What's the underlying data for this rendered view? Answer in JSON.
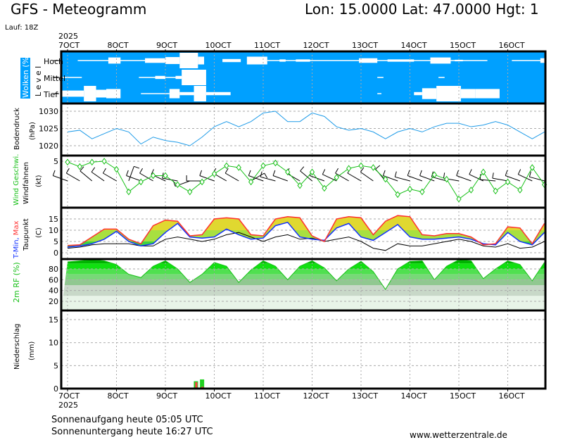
{
  "header": {
    "title": "GFS - Meteogramm",
    "location": "Lon: 15.0000  Lat: 47.0000  Hgt: 1",
    "run": "Lauf: 18Z",
    "year": "2025"
  },
  "footer": {
    "sunrise": "Sonnenaufgang heute 05:05 UTC",
    "sunset": "Sonnenuntergang heute 16:27 UTC",
    "website": "www.wetterzentrale.de"
  },
  "colors": {
    "cloud_bg": "#00a0ff",
    "pressure": "#1e9be8",
    "wind": "#19c019",
    "tmin": "#1030ff",
    "tmax": "#ff3030",
    "dew": "#000000",
    "precip_total": "#20d020",
    "precip_conv": "#ff4040"
  },
  "chart_data": {
    "type": "line",
    "title": "GFS - Meteogramm",
    "x_unit": "hours since 7 OCT 2025 00Z",
    "x_range": [
      -3,
      234
    ],
    "date_labels": [
      "7OCT",
      "8OCT",
      "9OCT",
      "10OCT",
      "11OCT",
      "12OCT",
      "13OCT",
      "14OCT",
      "15OCT",
      "16OCT"
    ],
    "hours": [
      0,
      6,
      12,
      18,
      24,
      30,
      36,
      42,
      48,
      54,
      60,
      66,
      72,
      78,
      84,
      90,
      96,
      102,
      108,
      114,
      120,
      126,
      132,
      138,
      144,
      150,
      156,
      162,
      168,
      174,
      180,
      186,
      192,
      198,
      204,
      210,
      216,
      222,
      228,
      234
    ],
    "panels": {
      "clouds": {
        "label": "Wolken (%)",
        "sublabel": "L e v e l",
        "levels": [
          {
            "name": "Hoch",
            "segments": [
              [
                5,
                38,
                5
              ],
              [
                20,
                26,
                40
              ],
              [
                38,
                48,
                30
              ],
              [
                48,
                55,
                45
              ],
              [
                55,
                64,
                100
              ],
              [
                64,
                67,
                50
              ],
              [
                76,
                85,
                20
              ],
              [
                88,
                98,
                50
              ],
              [
                98,
                206,
                5
              ],
              [
                104,
                107,
                15
              ],
              [
                112,
                119,
                15
              ],
              [
                143,
                152,
                30
              ],
              [
                157,
                170,
                15
              ],
              [
                178,
                188,
                40
              ],
              [
                190,
                194,
                10
              ],
              [
                218,
                234,
                5
              ],
              [
                232,
                234,
                30
              ]
            ]
          },
          {
            "name": "Mittel",
            "segments": [
              [
                -3,
                7,
                5
              ],
              [
                35,
                67,
                5
              ],
              [
                43,
                48,
                20
              ],
              [
                53,
                56,
                20
              ],
              [
                56,
                68,
                100
              ],
              [
                152,
                155,
                5
              ],
              [
                182,
                185,
                5
              ]
            ]
          },
          {
            "name": "Tief",
            "segments": [
              [
                -3,
                8,
                40
              ],
              [
                8,
                14,
                100
              ],
              [
                14,
                19,
                50
              ],
              [
                19,
                26,
                60
              ],
              [
                36,
                50,
                5
              ],
              [
                50,
                55,
                60
              ],
              [
                55,
                62,
                20
              ],
              [
                62,
                68,
                100
              ],
              [
                68,
                80,
                20
              ],
              [
                152,
                154,
                5
              ],
              [
                170,
                174,
                20
              ],
              [
                174,
                181,
                70
              ],
              [
                181,
                193,
                100
              ],
              [
                193,
                200,
                60
              ],
              [
                200,
                212,
                60
              ]
            ]
          }
        ]
      },
      "pressure": {
        "label": "Bodendruck",
        "unit": "(hPa)",
        "ticks": [
          1020,
          1025,
          1030
        ],
        "ylim": [
          1018,
          1032
        ],
        "values": [
          1024,
          1024.5,
          1022,
          1023.5,
          1025,
          1024,
          1020.5,
          1022.5,
          1021.5,
          1021,
          1020,
          1022.5,
          1025.5,
          1027,
          1025.5,
          1027,
          1029.5,
          1030,
          1027,
          1027,
          1029.5,
          1028.5,
          1025.5,
          1024.5,
          1025,
          1024,
          1022,
          1024,
          1025,
          1024,
          1025.5,
          1026.5,
          1026.5,
          1025.5,
          1026,
          1027,
          1026,
          1024,
          1022,
          1024
        ]
      },
      "wind": {
        "label": "Wind Geschwi.",
        "sublabel": "Windfahnen",
        "unit": "(kt)",
        "ticks": [
          5
        ],
        "ylim": [
          0,
          5.5
        ],
        "speed": [
          4.9,
          4.4,
          4.9,
          5.0,
          4.1,
          1.6,
          2.7,
          3.4,
          3.4,
          2.4,
          1.6,
          2.7,
          3.6,
          4.5,
          4.3,
          2.7,
          4.5,
          4.8,
          3.8,
          2.3,
          3.8,
          2.0,
          3.2,
          4.2,
          4.5,
          4.3,
          3.0,
          1.3,
          1.9,
          1.6,
          3.5,
          3.0,
          0.8,
          1.8,
          3.8,
          1.7,
          2.7,
          1.8,
          4.3,
          2.4
        ],
        "direction_deg": [
          290,
          300,
          310,
          305,
          300,
          20,
          290,
          300,
          295,
          280,
          250,
          270,
          290,
          300,
          300,
          60,
          290,
          285,
          290,
          300,
          310,
          290,
          295,
          300,
          300,
          305,
          320,
          290,
          285,
          290,
          290,
          285,
          280,
          290,
          295,
          275,
          280,
          290,
          295,
          285
        ]
      },
      "temperature": {
        "label_min": "T-Min,",
        "label_max": "Max",
        "sublabel": "Taupunkt",
        "unit": "(C)",
        "ticks": [
          0,
          5,
          10,
          15
        ],
        "ylim": [
          -1,
          19
        ],
        "tmax": [
          3.2,
          3.5,
          7,
          10.5,
          10.5,
          6,
          4,
          12,
          14.5,
          14,
          7.5,
          8,
          15,
          15.5,
          15,
          8,
          7.5,
          15,
          16,
          15.5,
          7.5,
          5,
          15,
          16,
          15.5,
          8,
          14,
          16.5,
          16,
          8,
          7.5,
          8.5,
          8.5,
          7,
          3.5,
          4,
          11.5,
          11,
          4,
          13
        ],
        "tmin": [
          2.5,
          3,
          4,
          6,
          9.5,
          5,
          3,
          4,
          9,
          13,
          7,
          6.5,
          7,
          10.5,
          8,
          6,
          6.5,
          12,
          13.5,
          7,
          6,
          5.5,
          11,
          13,
          7,
          5.5,
          9,
          12.5,
          7,
          6,
          6,
          6.5,
          7,
          6,
          4,
          3.5,
          9,
          5,
          3.5,
          9
        ],
        "dewpoint": [
          2,
          2.5,
          3.5,
          4,
          4,
          4,
          3,
          3,
          6,
          7,
          6,
          5,
          6,
          8,
          9,
          7,
          5,
          7,
          8,
          6,
          6.5,
          5,
          6,
          7,
          5,
          2,
          1,
          4,
          3,
          3,
          4,
          5,
          6,
          5,
          3,
          2.5,
          4,
          2,
          2.5,
          5
        ]
      },
      "humidity": {
        "label": "2m RF (%)",
        "ticks": [
          20,
          40,
          60,
          80
        ],
        "ylim": [
          0,
          100
        ],
        "values": [
          93,
          95,
          97,
          95,
          88,
          70,
          64,
          85,
          95,
          80,
          55,
          70,
          92,
          85,
          55,
          78,
          95,
          85,
          60,
          85,
          95,
          82,
          58,
          80,
          94,
          75,
          42,
          80,
          94,
          95,
          60,
          85,
          97,
          95,
          62,
          80,
          95,
          88,
          58,
          92
        ]
      },
      "precipitation": {
        "label": "Niederschlag",
        "unit": "(mm)",
        "ticks": [
          0,
          5,
          10,
          15
        ],
        "ylim": [
          0,
          17
        ],
        "bars": [
          {
            "hour": 0,
            "total": 0.2,
            "convective": 0.0
          },
          {
            "hour": 6,
            "total": 0.2,
            "convective": 0.0
          },
          {
            "hour": 18,
            "total": 0.0,
            "convective": 0.1
          },
          {
            "hour": 60,
            "total": 0.2,
            "convective": 0.1
          },
          {
            "hour": 63,
            "total": 1.6,
            "convective": 1.4
          },
          {
            "hour": 66,
            "total": 2.0,
            "convective": 0.4
          },
          {
            "hour": 69,
            "total": 0.2,
            "convective": 0.1
          }
        ]
      }
    }
  }
}
